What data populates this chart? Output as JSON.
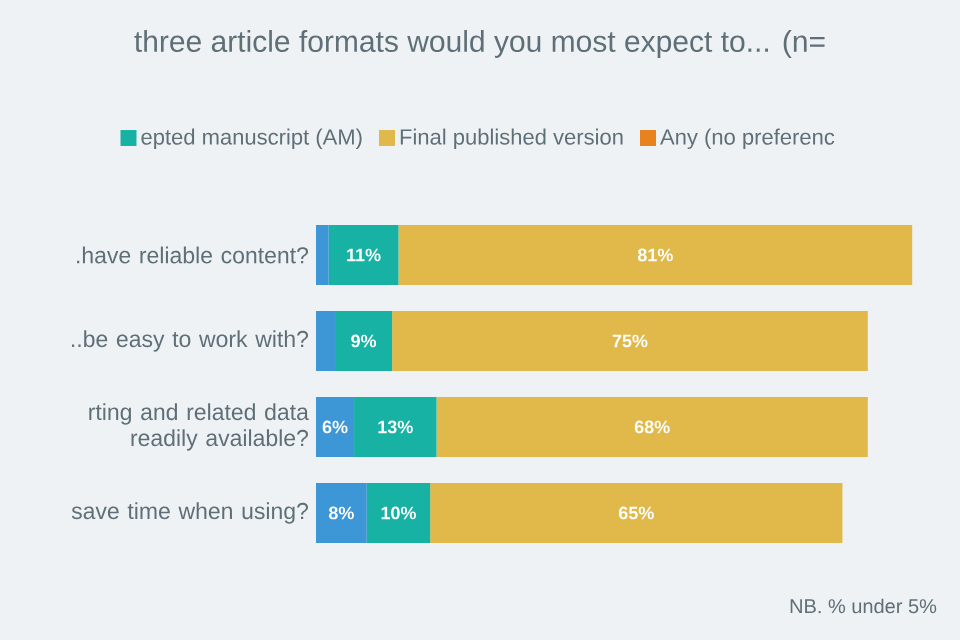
{
  "chart_data": {
    "type": "bar",
    "orientation": "horizontal",
    "stacked": true,
    "title": "three article formats would you most expect to... (n=",
    "categories": [
      ".have reliable content?",
      "..be easy to work with?",
      "rting and related data readily available?",
      "save time when using?"
    ],
    "series": [
      {
        "color": "#3d96d5",
        "values": [
          2,
          3,
          6,
          8
        ],
        "value_labels": [
          null,
          null,
          "6%",
          "8%"
        ]
      },
      {
        "name": "epted manuscript (AM)",
        "color": "#17b2a4",
        "values": [
          11,
          9,
          13,
          10
        ],
        "value_labels": [
          "11%",
          "9%",
          "13%",
          "10%"
        ]
      },
      {
        "name": "Final published version",
        "color": "#e1b94a",
        "values": [
          81,
          75,
          68,
          65
        ],
        "value_labels": [
          "81%",
          "75%",
          "68%",
          "65%"
        ]
      },
      {
        "name": "Any (no preferenc",
        "color": "#e8821e",
        "values": [
          null,
          null,
          null,
          null
        ]
      }
    ],
    "legend": "top",
    "annotations": [
      "NB. % under 5%"
    ]
  }
}
